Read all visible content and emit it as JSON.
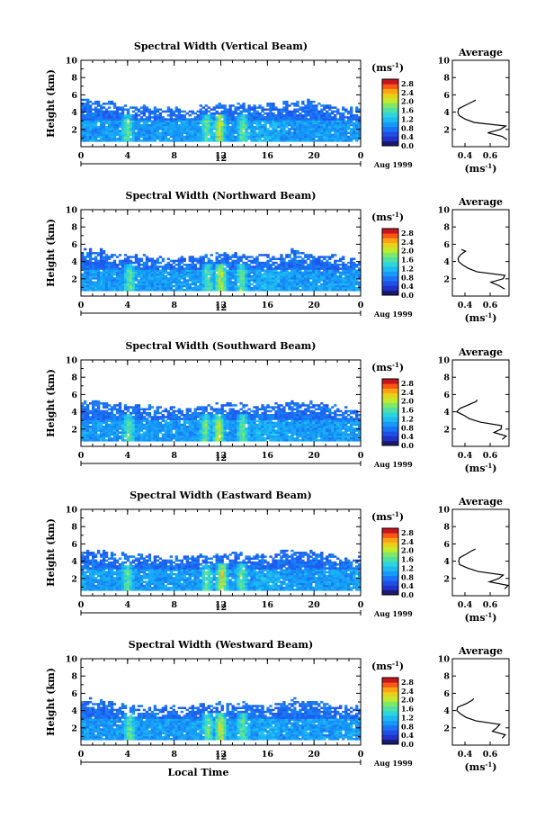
{
  "chart_data": [
    {
      "type": "heatmap",
      "title": "Spectral Width (Vertical Beam)",
      "ylabel": "Height (km)",
      "xlabel": "",
      "xlim": [
        0,
        24
      ],
      "ylim": [
        0,
        10
      ],
      "xticks": [
        "0",
        "4",
        "8",
        "12",
        "16",
        "20",
        "0"
      ],
      "yticks": [
        "2",
        "4",
        "6",
        "8",
        "10"
      ],
      "date_label": "Aug 1999",
      "day_label": "12",
      "colorbar": {
        "unit": "(ms",
        "unit_exp": "-1",
        "unit_close": ")",
        "ticks": [
          "2.8",
          "2.4",
          "2.0",
          "1.6",
          "1.2",
          "0.8",
          "0.4",
          "0.0"
        ],
        "range": [
          0,
          2.8
        ]
      },
      "data_top_km": [
        5.3,
        5.1,
        5.0,
        4.8,
        4.6,
        4.5,
        4.4,
        4.3,
        4.3,
        4.4,
        4.6,
        4.8,
        4.9,
        4.7,
        4.6,
        4.6,
        4.8,
        5.0,
        5.2,
        5.3,
        4.9,
        4.7,
        4.5,
        4.4,
        4.5
      ],
      "hotspots_hour": [
        4.0,
        10.8,
        11.9,
        13.9
      ],
      "profile": {
        "title": "Average",
        "xlabel": "(ms",
        "xlabel_exp": "-1",
        "xlabel_close": ")",
        "xticks": [
          "0.4",
          "0.6"
        ],
        "xlim": [
          0.3,
          0.75
        ],
        "ylim": [
          0,
          10
        ],
        "yticks": [
          "2",
          "4",
          "6",
          "8",
          "10"
        ],
        "heights_km": [
          0.8,
          1.2,
          1.6,
          2.0,
          2.4,
          2.8,
          3.2,
          3.6,
          4.0,
          4.4,
          4.8,
          5.2,
          5.4
        ],
        "values": [
          0.74,
          0.7,
          0.58,
          0.68,
          0.72,
          0.48,
          0.4,
          0.36,
          0.34,
          0.36,
          0.4,
          0.46,
          0.48
        ]
      }
    },
    {
      "type": "heatmap",
      "title": "Spectral Width (Northward Beam)",
      "ylabel": "Height (km)",
      "xlabel": "",
      "xlim": [
        0,
        24
      ],
      "ylim": [
        0,
        10
      ],
      "xticks": [
        "0",
        "4",
        "8",
        "12",
        "16",
        "20",
        "0"
      ],
      "yticks": [
        "2",
        "4",
        "6",
        "8",
        "10"
      ],
      "date_label": "Aug 1999",
      "day_label": "12",
      "colorbar": {
        "unit": "(ms",
        "unit_exp": "-1",
        "unit_close": ")",
        "ticks": [
          "2.8",
          "2.4",
          "2.0",
          "1.6",
          "1.2",
          "0.8",
          "0.4",
          "0.0"
        ],
        "range": [
          0,
          2.8
        ]
      },
      "data_top_km": [
        5.3,
        5.1,
        4.9,
        4.8,
        4.7,
        4.6,
        4.5,
        4.3,
        4.3,
        4.4,
        4.6,
        4.8,
        4.9,
        4.8,
        4.7,
        4.6,
        4.8,
        5.0,
        5.2,
        5.0,
        4.8,
        4.6,
        4.4,
        4.3,
        4.4
      ],
      "hotspots_hour": [
        4.2,
        10.9,
        12.0,
        13.8
      ],
      "profile": {
        "title": "Average",
        "xlabel": "(ms",
        "xlabel_exp": "-1",
        "xlabel_close": ")",
        "xticks": [
          "0.4",
          "0.6"
        ],
        "xlim": [
          0.3,
          0.75
        ],
        "ylim": [
          0,
          10
        ],
        "yticks": [
          "2",
          "4",
          "6",
          "8",
          "10"
        ],
        "heights_km": [
          0.8,
          1.2,
          1.6,
          2.0,
          2.4,
          2.8,
          3.2,
          3.6,
          4.0,
          4.4,
          4.8,
          5.2,
          5.4
        ],
        "values": [
          0.72,
          0.68,
          0.6,
          0.7,
          0.72,
          0.5,
          0.42,
          0.38,
          0.35,
          0.34,
          0.36,
          0.4,
          0.38
        ]
      }
    },
    {
      "type": "heatmap",
      "title": "Spectral Width (Southward Beam)",
      "ylabel": "Height (km)",
      "xlabel": "",
      "xlim": [
        0,
        24
      ],
      "ylim": [
        0,
        10
      ],
      "xticks": [
        "0",
        "4",
        "8",
        "12",
        "16",
        "20",
        "0"
      ],
      "yticks": [
        "2",
        "4",
        "6",
        "8",
        "10"
      ],
      "date_label": "Aug 1999",
      "day_label": "12",
      "colorbar": {
        "unit": "(ms",
        "unit_exp": "-1",
        "unit_close": ")",
        "ticks": [
          "2.8",
          "2.4",
          "2.0",
          "1.6",
          "1.2",
          "0.8",
          "0.4",
          "0.0"
        ],
        "range": [
          0,
          2.8
        ]
      },
      "data_top_km": [
        5.2,
        5.1,
        4.9,
        4.7,
        4.6,
        4.5,
        4.4,
        4.3,
        4.2,
        4.4,
        4.6,
        4.7,
        4.9,
        4.8,
        4.6,
        4.6,
        4.8,
        5.0,
        5.1,
        5.0,
        4.8,
        4.6,
        4.4,
        4.3,
        4.4
      ],
      "hotspots_hour": [
        4.1,
        10.7,
        11.8,
        13.9
      ],
      "profile": {
        "title": "Average",
        "xlabel": "(ms",
        "xlabel_exp": "-1",
        "xlabel_close": ")",
        "xticks": [
          "0.4",
          "0.6"
        ],
        "xlim": [
          0.3,
          0.75
        ],
        "ylim": [
          0,
          10
        ],
        "yticks": [
          "2",
          "4",
          "6",
          "8",
          "10"
        ],
        "heights_km": [
          0.8,
          1.2,
          1.6,
          2.0,
          2.4,
          2.8,
          3.2,
          3.6,
          4.0,
          4.4,
          4.8,
          5.2,
          5.4
        ],
        "values": [
          0.7,
          0.72,
          0.62,
          0.68,
          0.7,
          0.52,
          0.44,
          0.38,
          0.34,
          0.36,
          0.42,
          0.48,
          0.5
        ]
      }
    },
    {
      "type": "heatmap",
      "title": "Spectral Width (Eastward Beam)",
      "ylabel": "Height (km)",
      "xlabel": "",
      "xlim": [
        0,
        24
      ],
      "ylim": [
        0,
        10
      ],
      "xticks": [
        "0",
        "4",
        "8",
        "12",
        "16",
        "20",
        "0"
      ],
      "yticks": [
        "2",
        "4",
        "6",
        "8",
        "10"
      ],
      "date_label": "Aug 1999",
      "day_label": "12",
      "colorbar": {
        "unit": "(ms",
        "unit_exp": "-1",
        "unit_close": ")",
        "ticks": [
          "2.8",
          "2.4",
          "2.0",
          "1.6",
          "1.2",
          "0.8",
          "0.4",
          "0.0"
        ],
        "range": [
          0,
          2.8
        ]
      },
      "data_top_km": [
        5.2,
        5.0,
        4.9,
        4.8,
        4.6,
        4.5,
        4.4,
        4.3,
        4.3,
        4.4,
        4.5,
        4.7,
        4.8,
        4.8,
        4.7,
        4.6,
        4.8,
        5.0,
        5.2,
        5.1,
        4.9,
        4.7,
        4.5,
        4.3,
        4.4
      ],
      "hotspots_hour": [
        4.0,
        10.8,
        12.1,
        13.8
      ],
      "profile": {
        "title": "Average",
        "xlabel": "(ms",
        "xlabel_exp": "-1",
        "xlabel_close": ")",
        "xticks": [
          "0.4",
          "0.6"
        ],
        "xlim": [
          0.3,
          0.75
        ],
        "ylim": [
          0,
          10
        ],
        "yticks": [
          "2",
          "4",
          "6",
          "8",
          "10"
        ],
        "heights_km": [
          0.8,
          1.2,
          1.6,
          2.0,
          2.4,
          2.8,
          3.2,
          3.6,
          4.0,
          4.4,
          4.8,
          5.2,
          5.4
        ],
        "values": [
          0.72,
          0.74,
          0.6,
          0.66,
          0.7,
          0.5,
          0.42,
          0.36,
          0.34,
          0.36,
          0.4,
          0.46,
          0.48
        ]
      }
    },
    {
      "type": "heatmap",
      "title": "Spectral Width (Westward Beam)",
      "ylabel": "Height (km)",
      "xlabel": "Local Time",
      "xlim": [
        0,
        24
      ],
      "ylim": [
        0,
        10
      ],
      "xticks": [
        "0",
        "4",
        "8",
        "12",
        "16",
        "20",
        "0"
      ],
      "yticks": [
        "2",
        "4",
        "6",
        "8",
        "10"
      ],
      "date_label": "Aug 1999",
      "day_label": "12",
      "colorbar": {
        "unit": "(ms",
        "unit_exp": "-1",
        "unit_close": ")",
        "ticks": [
          "2.8",
          "2.4",
          "2.0",
          "1.6",
          "1.2",
          "0.8",
          "0.4",
          "0.0"
        ],
        "range": [
          0,
          2.8
        ]
      },
      "data_top_km": [
        5.1,
        5.0,
        4.9,
        4.7,
        4.6,
        4.5,
        4.4,
        4.3,
        4.2,
        4.3,
        4.5,
        4.7,
        4.8,
        4.7,
        4.6,
        4.6,
        4.7,
        4.9,
        5.2,
        5.1,
        4.8,
        4.6,
        4.4,
        4.3,
        4.4
      ],
      "hotspots_hour": [
        4.2,
        10.9,
        12.0,
        13.9
      ],
      "profile": {
        "title": "Average",
        "xlabel": "(ms",
        "xlabel_exp": "-1",
        "xlabel_close": ")",
        "xticks": [
          "0.4",
          "0.6"
        ],
        "xlim": [
          0.3,
          0.75
        ],
        "ylim": [
          0,
          10
        ],
        "yticks": [
          "2",
          "4",
          "6",
          "8",
          "10"
        ],
        "heights_km": [
          0.8,
          1.2,
          1.6,
          2.0,
          2.4,
          2.8,
          3.2,
          3.6,
          4.0,
          4.4,
          4.8,
          5.2,
          5.4
        ],
        "values": [
          0.7,
          0.72,
          0.62,
          0.66,
          0.68,
          0.48,
          0.4,
          0.36,
          0.33,
          0.35,
          0.4,
          0.46,
          0.46
        ]
      }
    }
  ]
}
